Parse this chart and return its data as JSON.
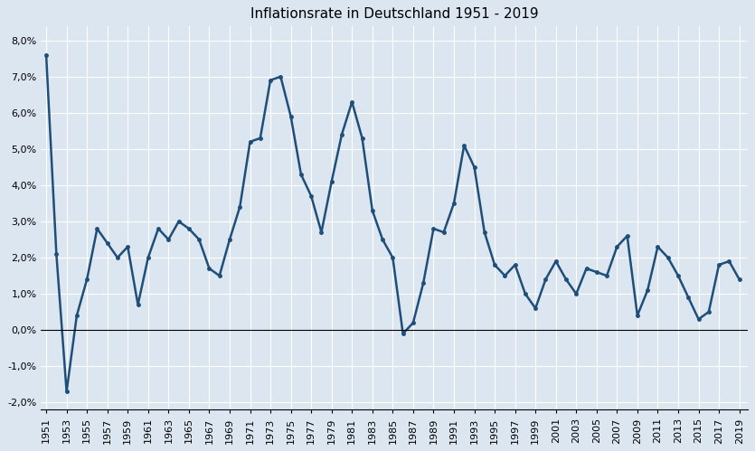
{
  "title": "Inflationsrate in Deutschland 1951 - 2019",
  "years": [
    1951,
    1952,
    1953,
    1954,
    1955,
    1956,
    1957,
    1958,
    1959,
    1960,
    1961,
    1962,
    1963,
    1964,
    1965,
    1966,
    1967,
    1968,
    1969,
    1970,
    1971,
    1972,
    1973,
    1974,
    1975,
    1976,
    1977,
    1978,
    1979,
    1980,
    1981,
    1982,
    1983,
    1984,
    1985,
    1986,
    1987,
    1988,
    1989,
    1990,
    1991,
    1992,
    1993,
    1994,
    1995,
    1996,
    1997,
    1998,
    1999,
    2000,
    2001,
    2002,
    2003,
    2004,
    2005,
    2006,
    2007,
    2008,
    2009,
    2010,
    2011,
    2012,
    2013,
    2014,
    2015,
    2016,
    2017,
    2018,
    2019
  ],
  "values": [
    7.6,
    2.1,
    -1.7,
    0.4,
    1.4,
    2.8,
    2.4,
    2.0,
    2.3,
    0.7,
    2.0,
    2.8,
    2.5,
    3.0,
    2.8,
    2.5,
    1.7,
    1.5,
    2.5,
    3.4,
    5.2,
    5.3,
    6.9,
    7.0,
    5.9,
    4.3,
    3.7,
    2.7,
    4.1,
    5.4,
    6.3,
    5.3,
    3.3,
    2.5,
    2.0,
    -0.1,
    0.2,
    1.3,
    2.8,
    2.7,
    3.5,
    5.1,
    4.5,
    2.7,
    1.8,
    1.5,
    1.8,
    1.0,
    0.6,
    1.4,
    1.9,
    1.4,
    1.0,
    1.7,
    1.6,
    1.5,
    2.3,
    2.6,
    0.4,
    1.1,
    2.3,
    2.0,
    1.5,
    0.9,
    0.3,
    0.5,
    1.8,
    1.9,
    1.4
  ],
  "line_color": "#1f4e79",
  "background_color": "#dce6f1",
  "plot_bg_color": "#dce6f1",
  "grid_color": "#ffffff",
  "ylim": [
    -2.2,
    8.4
  ],
  "ytick_values": [
    -2.0,
    -1.0,
    0.0,
    1.0,
    2.0,
    3.0,
    4.0,
    5.0,
    6.0,
    7.0,
    8.0
  ],
  "title_fontsize": 11,
  "tick_fontsize": 8,
  "line_width": 1.8,
  "fig_width": 8.35,
  "fig_height": 4.99,
  "dpi": 100
}
